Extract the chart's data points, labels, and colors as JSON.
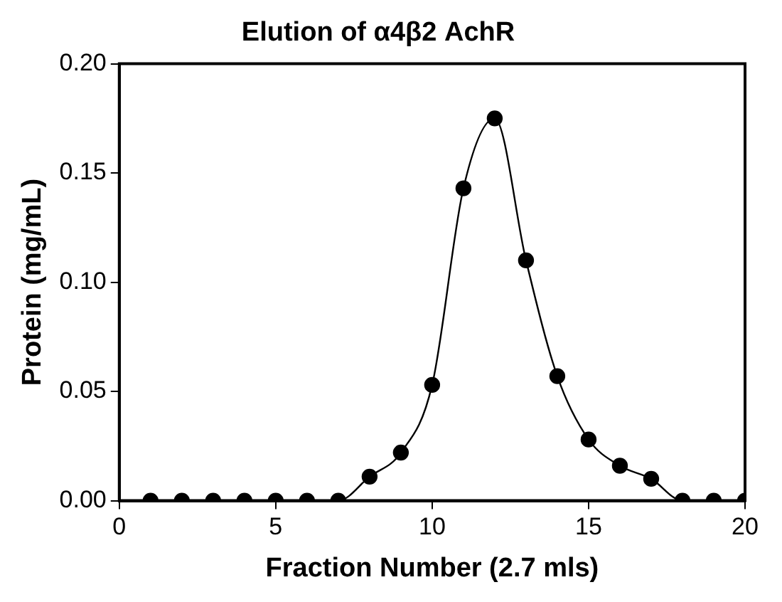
{
  "chart_data": {
    "type": "line",
    "title": "Elution of α4β2 AchR",
    "xlabel": "Fraction Number (2.7 mls)",
    "ylabel": "Protein (mg/mL)",
    "x": [
      1,
      2,
      3,
      4,
      5,
      6,
      7,
      8,
      9,
      10,
      11,
      12,
      13,
      14,
      15,
      16,
      17,
      18,
      19,
      20
    ],
    "series": [
      {
        "color": "#000000",
        "values": [
          0,
          0,
          0,
          0,
          0,
          0,
          0,
          0.011,
          0.022,
          0.053,
          0.143,
          0.175,
          0.11,
          0.057,
          0.028,
          0.016,
          0.01,
          0,
          0,
          0
        ]
      }
    ],
    "xlim": [
      0,
      20
    ],
    "xticks": [
      0,
      5,
      10,
      15,
      20
    ],
    "ylim": [
      0,
      0.2
    ],
    "yticks": [
      {
        "value": 0,
        "label": "0.00"
      },
      {
        "value": 0.05,
        "label": "0.05"
      },
      {
        "value": 0.1,
        "label": "0.10"
      },
      {
        "value": 0.15,
        "label": "0.15"
      },
      {
        "value": 0.2,
        "label": "0.20"
      }
    ],
    "grid": false,
    "legend": false,
    "marker": "circle",
    "line_style": "solid"
  }
}
